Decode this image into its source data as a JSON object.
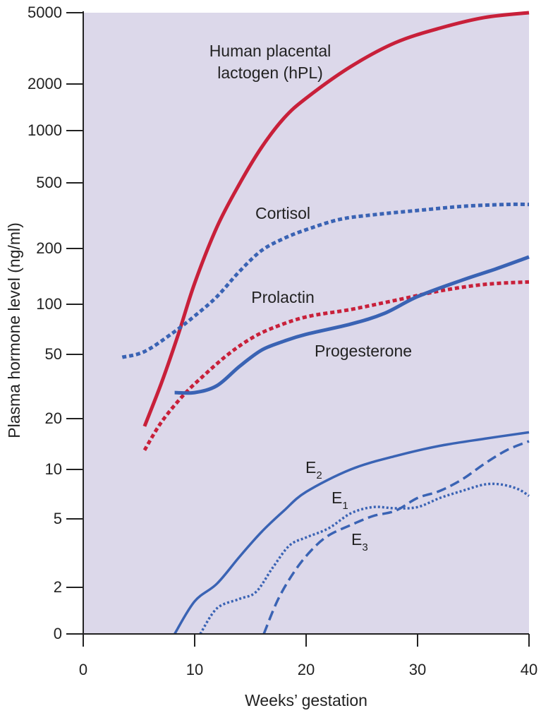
{
  "chart_data": {
    "type": "line",
    "title": "",
    "xlabel": "Weeks’ gestation",
    "ylabel": "Plasma hormone level (ng/ml)",
    "xlim": [
      0,
      40
    ],
    "x_ticks": [
      "0",
      "10",
      "20",
      "30",
      "40"
    ],
    "y_scale": "log",
    "y_ticks": [
      "0",
      "2",
      "5",
      "10",
      "20",
      "50",
      "100",
      "200",
      "500",
      "1000",
      "2000",
      "5000"
    ],
    "grid": false,
    "background_color": "#dcd8ea",
    "series": [
      {
        "name": "Human placental lactogen (hPL)",
        "label_lines": [
          "Human placental",
          "lactogen (hPL)"
        ],
        "color": "#c8203a",
        "style": "solid",
        "x": [
          5.5,
          7,
          8.5,
          10,
          12,
          14,
          16,
          18,
          20,
          24,
          28,
          32,
          36,
          40
        ],
        "y": [
          18,
          33,
          65,
          130,
          270,
          490,
          800,
          1200,
          1620,
          2500,
          3400,
          4100,
          4700,
          5000
        ]
      },
      {
        "name": "Cortisol",
        "color": "#3a63b4",
        "style": "dotted",
        "x": [
          3.5,
          5.5,
          8,
          10,
          12,
          14,
          16,
          18,
          20,
          23,
          26,
          30,
          34,
          38,
          40
        ],
        "y": [
          48,
          52,
          67,
          85,
          110,
          150,
          195,
          230,
          260,
          300,
          320,
          340,
          360,
          370,
          370
        ]
      },
      {
        "name": "Prolactin",
        "color": "#c8203a",
        "style": "dotted",
        "x": [
          5.5,
          7,
          9,
          11,
          13,
          15,
          17,
          20,
          24,
          28,
          32,
          36,
          40
        ],
        "y": [
          13,
          19,
          28,
          38,
          50,
          62,
          72,
          84,
          93,
          105,
          118,
          128,
          132
        ]
      },
      {
        "name": "Progesterone",
        "color": "#3a63b4",
        "style": "solid",
        "x": [
          8.2,
          10,
          12,
          14,
          16,
          18,
          20,
          24,
          27,
          30,
          34,
          37,
          40
        ],
        "y": [
          29,
          29,
          32,
          42,
          53,
          60,
          66,
          76,
          88,
          110,
          135,
          155,
          180
        ]
      },
      {
        "name": "E",
        "sub": "2",
        "color": "#3a63b4",
        "style": "solid",
        "x": [
          8.2,
          10,
          12,
          14,
          16,
          18,
          20,
          24,
          28,
          32,
          36,
          40
        ],
        "y": [
          0,
          1.4,
          2.1,
          3.0,
          4.2,
          5.6,
          7.3,
          10,
          12,
          13.8,
          15.2,
          16.6
        ]
      },
      {
        "name": "E",
        "sub": "1",
        "color": "#3a63b4",
        "style": "dotted",
        "x": [
          10.5,
          12,
          14,
          15.5,
          17,
          18.5,
          20,
          22,
          24,
          26,
          28,
          30,
          32,
          34,
          36,
          37.5,
          39,
          40
        ],
        "y": [
          0,
          1.1,
          1.5,
          1.8,
          2.6,
          3.5,
          3.9,
          4.4,
          5.4,
          5.9,
          5.8,
          5.9,
          6.7,
          7.4,
          8.1,
          8.1,
          7.6,
          6.9
        ]
      },
      {
        "name": "E",
        "sub": "3",
        "color": "#3a63b4",
        "style": "dashed",
        "x": [
          16.2,
          17.5,
          19,
          20.5,
          22,
          24,
          26,
          28,
          30,
          32,
          34,
          36,
          38,
          40
        ],
        "y": [
          0,
          1.5,
          2.5,
          3.3,
          4.0,
          4.6,
          5.2,
          5.6,
          6.7,
          7.4,
          8.7,
          10.8,
          13,
          14.7
        ]
      }
    ]
  }
}
